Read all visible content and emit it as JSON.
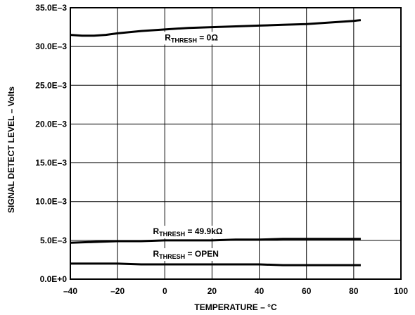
{
  "chart_data": {
    "type": "line",
    "xlabel": "TEMPERATURE – °C",
    "ylabel": "SIGNAL DETECT LEVEL – Volts",
    "xlim": [
      -40,
      100
    ],
    "ylim": [
      0,
      0.035
    ],
    "x_ticks": [
      -40,
      -20,
      0,
      20,
      40,
      60,
      80,
      100
    ],
    "x_tick_labels": [
      "–40",
      "–20",
      "0",
      "20",
      "40",
      "60",
      "80",
      "100"
    ],
    "y_ticks": [
      0,
      0.005,
      0.01,
      0.015,
      0.02,
      0.025,
      0.03,
      0.035
    ],
    "y_tick_labels": [
      "0.0E+0",
      "5.0E–3",
      "10.0E–3",
      "15.0E–3",
      "20.0E–3",
      "25.0E–3",
      "30.0E–3",
      "35.0E–3"
    ],
    "grid": true,
    "series": [
      {
        "label_main": "R",
        "label_sub": "THRESH",
        "label_rest": " = 0Ω",
        "label_pos": [
          0,
          0.0308
        ],
        "x": [
          -40,
          -35,
          -30,
          -25,
          -20,
          -10,
          0,
          10,
          20,
          30,
          40,
          50,
          60,
          70,
          80,
          83
        ],
        "y": [
          0.0315,
          0.0314,
          0.0314,
          0.0315,
          0.0317,
          0.032,
          0.0322,
          0.0324,
          0.0325,
          0.0326,
          0.0327,
          0.0328,
          0.0329,
          0.0331,
          0.0333,
          0.0334
        ]
      },
      {
        "label_main": "R",
        "label_sub": "THRESH",
        "label_rest": " = 49.9kΩ",
        "label_pos": [
          -5,
          0.0058
        ],
        "x": [
          -40,
          -30,
          -20,
          -10,
          0,
          10,
          20,
          30,
          40,
          50,
          60,
          70,
          80,
          83
        ],
        "y": [
          0.0047,
          0.0048,
          0.0049,
          0.0049,
          0.005,
          0.005,
          0.005,
          0.0051,
          0.0051,
          0.0052,
          0.0052,
          0.0052,
          0.0052,
          0.0052
        ]
      },
      {
        "label_main": "R",
        "label_sub": "THRESH",
        "label_rest": " = OPEN",
        "label_pos": [
          -5,
          0.0029
        ],
        "x": [
          -40,
          -30,
          -20,
          -10,
          0,
          10,
          20,
          30,
          40,
          50,
          60,
          70,
          80,
          83
        ],
        "y": [
          0.002,
          0.002,
          0.002,
          0.0019,
          0.0019,
          0.0019,
          0.0019,
          0.0019,
          0.0019,
          0.0018,
          0.0018,
          0.0018,
          0.0018,
          0.0018
        ]
      }
    ]
  }
}
